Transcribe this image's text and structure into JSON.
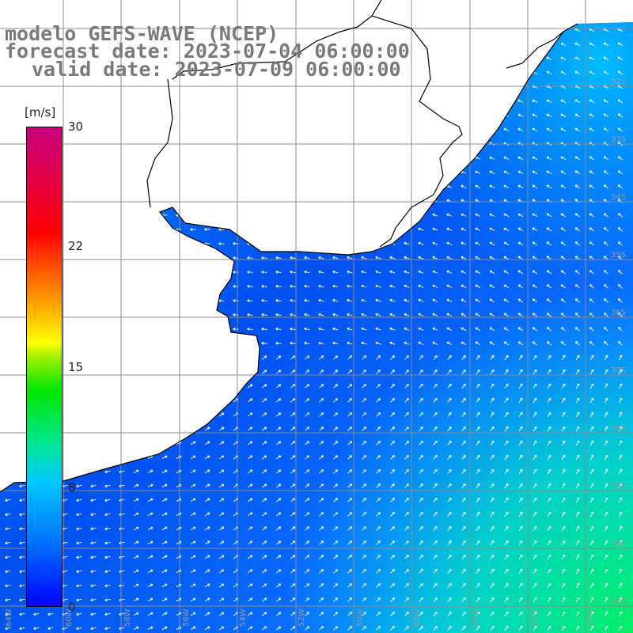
{
  "title": {
    "model": "modelo GEFS-WAVE (NCEP)",
    "forecast": "forecast date: 2023-07-04 06:00:00",
    "valid": "valid date: 2023-07-09 06:00:00"
  },
  "colorbar": {
    "unit": "[m/s]",
    "ticks": [
      "30",
      "22",
      "15",
      "8",
      "0"
    ]
  },
  "colors": {
    "land": "#ffffff",
    "coast": "#000000",
    "grid": "#8c8c8c",
    "arrow": "#ffffff"
  }
}
